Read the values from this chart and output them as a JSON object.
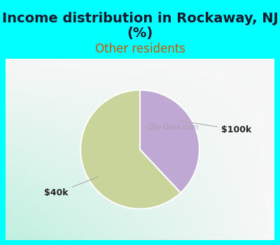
{
  "title_line1": "Income distribution in Rockaway, NJ",
  "title_line2": "(%)",
  "subtitle": "Other residents",
  "title_color": "#1a1a2e",
  "subtitle_color": "#cc5500",
  "background_cyan": "#00ffff",
  "chart_bg_topleft": "#d8f0e8",
  "chart_bg_topright": "#f5f5f5",
  "chart_bg_bottomleft": "#c8e8d8",
  "slices": [
    {
      "label": "$40k",
      "value": 62,
      "color": "#c8d49a"
    },
    {
      "label": "$100k",
      "value": 38,
      "color": "#c0a8d4"
    }
  ],
  "slice_label_color": "#222222",
  "line_color": "#aaaaaa",
  "startangle": 90,
  "figsize": [
    4.0,
    3.5
  ],
  "dpi": 100,
  "title_fontsize": 14,
  "subtitle_fontsize": 12
}
